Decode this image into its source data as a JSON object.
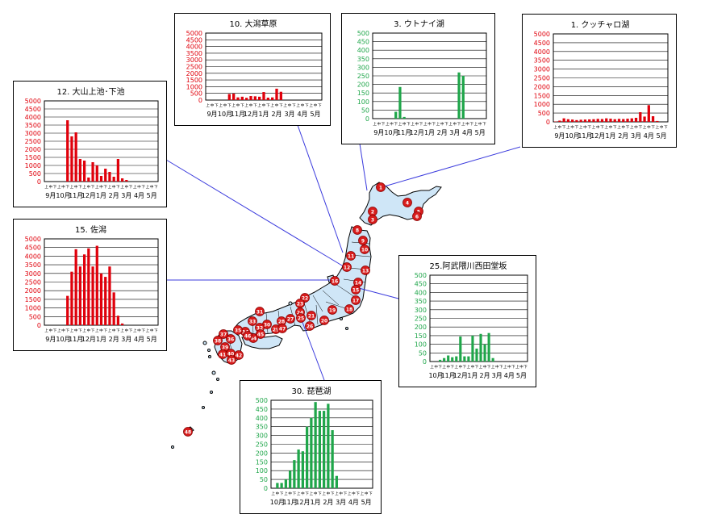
{
  "colors": {
    "red": "#e0000b",
    "green": "#1fa64a",
    "connector": "#3b3bdd",
    "land": "#cfe6f7",
    "marker": "#d81c1c"
  },
  "sub_ticks": "上中下",
  "panels": [
    {
      "id": "p1",
      "title": "1. クッチャロ湖",
      "color": "red",
      "ymax": 5000,
      "step": 500,
      "yticks": [
        "0",
        "500",
        "1000",
        "1500",
        "2000",
        "2500",
        "3000",
        "3500",
        "4000",
        "4500",
        "5000"
      ],
      "months": [
        "9月",
        "10月",
        "11月",
        "12月",
        "1月",
        "2月",
        "3月",
        "4月",
        "5月"
      ],
      "values": [
        20,
        70,
        200,
        150,
        130,
        100,
        120,
        130,
        140,
        150,
        170,
        160,
        200,
        180,
        150,
        170,
        160,
        180,
        200,
        230,
        550,
        300,
        950,
        320,
        50,
        0,
        0
      ]
    },
    {
      "id": "p3",
      "title": "3. ウトナイ湖",
      "color": "green",
      "ymax": 500,
      "step": 50,
      "yticks": [
        "0",
        "50",
        "100",
        "150",
        "200",
        "250",
        "300",
        "350",
        "400",
        "450",
        "500"
      ],
      "months": [
        "9月",
        "10月",
        "11月",
        "12月",
        "1月",
        "2月",
        "3月",
        "4月",
        "5月"
      ],
      "values": [
        0,
        0,
        0,
        0,
        0,
        40,
        185,
        10,
        0,
        0,
        0,
        0,
        0,
        0,
        0,
        0,
        0,
        0,
        0,
        0,
        270,
        250,
        0,
        0,
        0,
        0,
        0
      ]
    },
    {
      "id": "p10",
      "title": "10. 大潟草原",
      "color": "red",
      "ymax": 5000,
      "step": 500,
      "yticks": [
        "0",
        "500",
        "1000",
        "1500",
        "2000",
        "2500",
        "3000",
        "3500",
        "4000",
        "4500",
        "5000"
      ],
      "months": [
        "9月",
        "10月",
        "11月",
        "12月",
        "1月",
        "2月",
        "3月",
        "4月",
        "5月"
      ],
      "values": [
        0,
        0,
        0,
        0,
        0,
        450,
        480,
        200,
        250,
        170,
        300,
        280,
        250,
        600,
        180,
        200,
        850,
        620,
        0,
        0,
        0,
        0,
        0,
        0,
        0,
        0,
        0
      ]
    },
    {
      "id": "p12",
      "title": "12. 大山上池･下池",
      "color": "red",
      "ymax": 5000,
      "step": 500,
      "yticks": [
        "0",
        "500",
        "1000",
        "1500",
        "2000",
        "2500",
        "3000",
        "3500",
        "4000",
        "4500",
        "5000"
      ],
      "months": [
        "9月",
        "10月",
        "11月",
        "12月",
        "1月",
        "2月",
        "3月",
        "4月",
        "5月"
      ],
      "values": [
        0,
        0,
        0,
        0,
        0,
        3800,
        2800,
        3050,
        1400,
        1300,
        250,
        1200,
        1000,
        350,
        800,
        600,
        300,
        1400,
        200,
        100,
        0,
        0,
        0,
        0,
        0,
        0,
        0
      ]
    },
    {
      "id": "p15",
      "title": "15. 佐潟",
      "color": "red",
      "ymax": 5000,
      "step": 500,
      "yticks": [
        "0",
        "500",
        "1000",
        "1500",
        "2000",
        "2500",
        "3000",
        "3500",
        "4000",
        "4500",
        "5000"
      ],
      "months": [
        "9月",
        "10月",
        "11月",
        "12月",
        "1月",
        "2月",
        "3月",
        "4月",
        "5月"
      ],
      "values": [
        0,
        0,
        0,
        0,
        0,
        1700,
        3100,
        4400,
        3400,
        4100,
        4450,
        3400,
        4600,
        3000,
        2800,
        3400,
        1900,
        550,
        100,
        0,
        0,
        0,
        0,
        0,
        0,
        0,
        0
      ]
    },
    {
      "id": "p25",
      "title": "25.阿武隈川西田堂坂",
      "color": "green",
      "ymax": 500,
      "step": 50,
      "yticks": [
        "0",
        "50",
        "100",
        "150",
        "200",
        "250",
        "300",
        "350",
        "400",
        "450",
        "500"
      ],
      "months": [
        "10月",
        "11月",
        "12月",
        "1月",
        "2月",
        "3月",
        "4月",
        "5月"
      ],
      "values": [
        0,
        0,
        10,
        20,
        35,
        25,
        30,
        145,
        30,
        30,
        150,
        75,
        160,
        100,
        165,
        20,
        0,
        0,
        0,
        0,
        0,
        0,
        0,
        0
      ]
    },
    {
      "id": "p30",
      "title": "30. 琵琶湖",
      "color": "green",
      "ymax": 500,
      "step": 50,
      "yticks": [
        "0",
        "50",
        "100",
        "150",
        "200",
        "250",
        "300",
        "350",
        "400",
        "450",
        "500"
      ],
      "months": [
        "10月",
        "11月",
        "12月",
        "1月",
        "2月",
        "3月",
        "4月",
        "5月"
      ],
      "values": [
        0,
        30,
        30,
        50,
        100,
        160,
        220,
        210,
        350,
        400,
        490,
        440,
        440,
        480,
        330,
        70,
        0,
        0,
        0,
        0,
        0,
        0,
        0,
        0
      ]
    }
  ],
  "markers": [
    "1",
    "2",
    "3",
    "4",
    "5",
    "6",
    "8",
    "9",
    "10",
    "11",
    "12",
    "13",
    "14",
    "15",
    "16",
    "17",
    "18",
    "19",
    "20",
    "21",
    "22",
    "23",
    "24",
    "25",
    "26",
    "27",
    "28",
    "29",
    "30",
    "31",
    "32",
    "33",
    "34",
    "35",
    "36",
    "37",
    "38",
    "39",
    "40",
    "41",
    "42",
    "43",
    "44",
    "45",
    "46",
    "47",
    "48"
  ]
}
